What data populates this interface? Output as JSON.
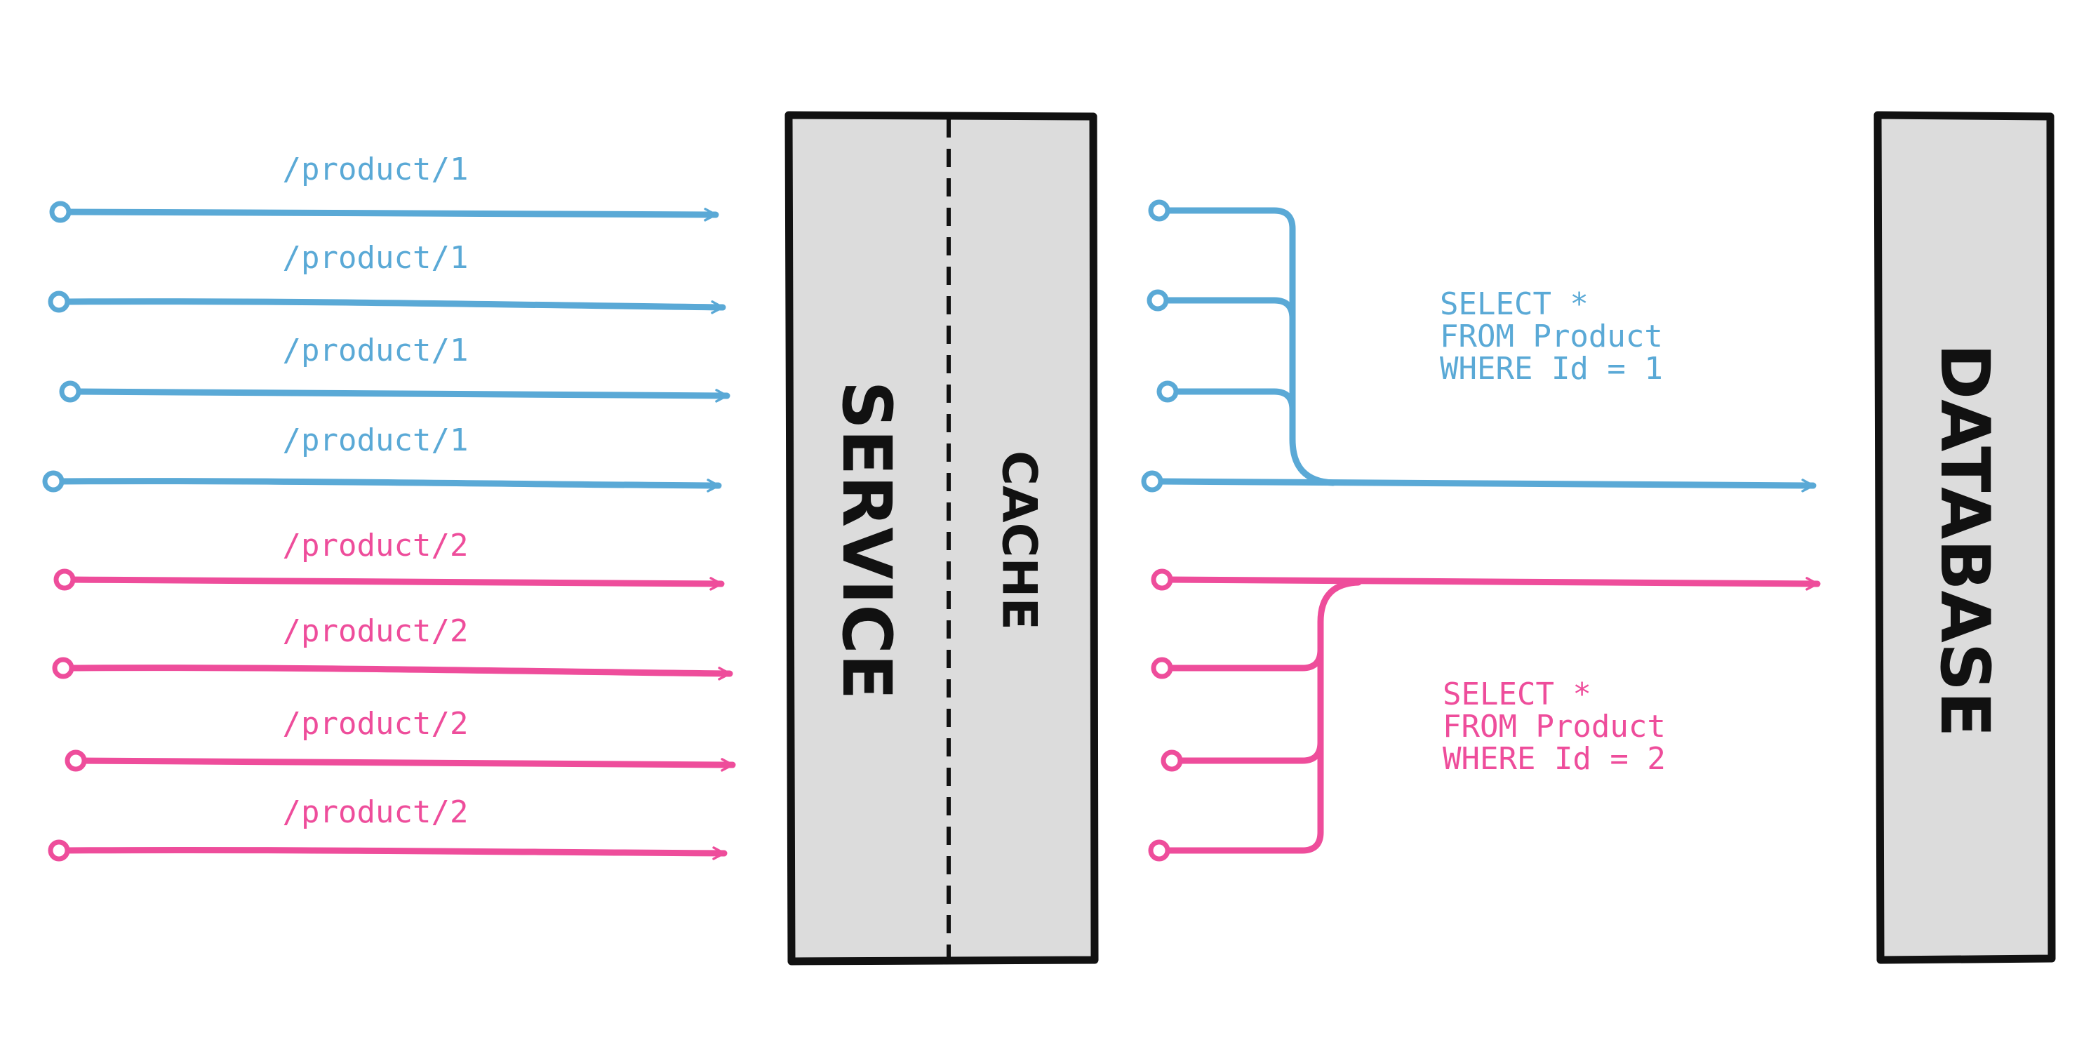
{
  "colors": {
    "blue": "#5aa9d6",
    "pink": "#ee4d9b",
    "box_fill": "#dcdcdc",
    "box_stroke": "#111111"
  },
  "requests": [
    {
      "label": "/product/1",
      "color": "blue"
    },
    {
      "label": "/product/1",
      "color": "blue"
    },
    {
      "label": "/product/1",
      "color": "blue"
    },
    {
      "label": "/product/1",
      "color": "blue"
    },
    {
      "label": "/product/2",
      "color": "pink"
    },
    {
      "label": "/product/2",
      "color": "pink"
    },
    {
      "label": "/product/2",
      "color": "pink"
    },
    {
      "label": "/product/2",
      "color": "pink"
    }
  ],
  "service": {
    "label": "SERVICE",
    "cache_label": "CACHE"
  },
  "database": {
    "label": "DATABASE"
  },
  "queries": [
    {
      "color": "blue",
      "lines": [
        "SELECT *",
        "FROM Product",
        "WHERE Id = 1"
      ]
    },
    {
      "color": "pink",
      "lines": [
        "SELECT *",
        "FROM Product",
        "WHERE Id = 2"
      ]
    }
  ]
}
